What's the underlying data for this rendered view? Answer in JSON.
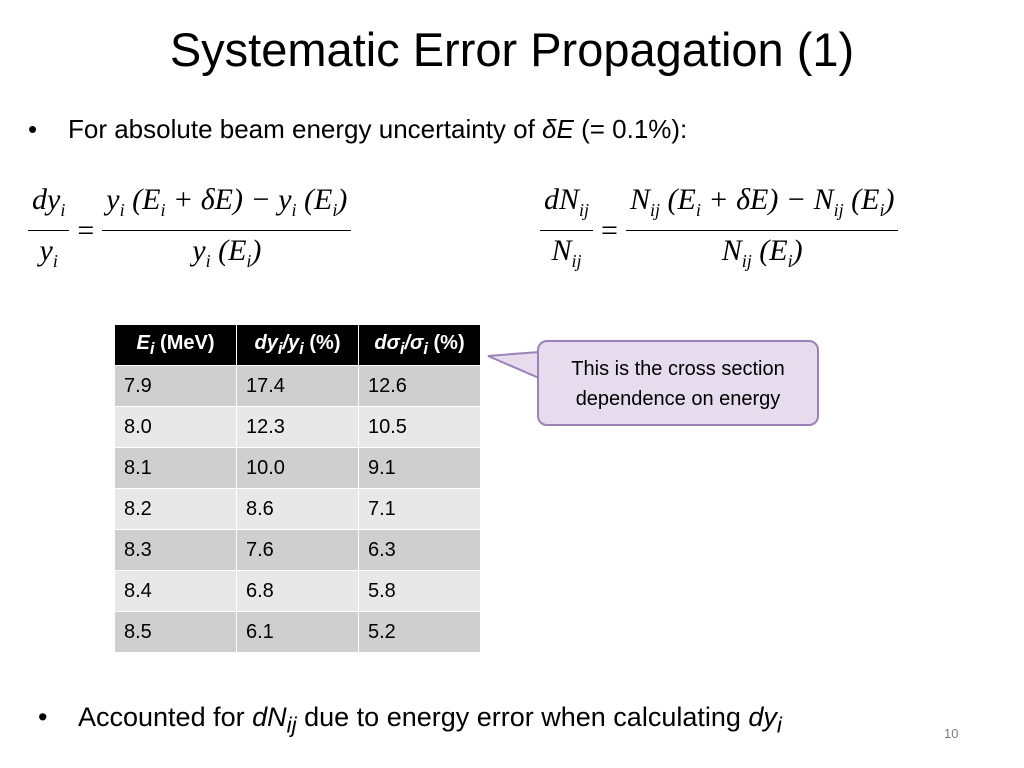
{
  "slide": {
    "title": "Systematic Error Propagation (1)",
    "bullet1": {
      "marker": "•",
      "text_before": "For absolute beam energy uncertainty of ",
      "delta_e": "δE",
      "text_after": " (= 0.1%):"
    },
    "equation1": {
      "lhs_num": "dy",
      "lhs_num_sub": "i",
      "lhs_den": "y",
      "lhs_den_sub": "i",
      "equals": "=",
      "rhs_num_a": "y",
      "rhs_num_a_sub": "i",
      "rhs_num_b": " (E",
      "rhs_num_b_sub": "i",
      "rhs_num_c": " + δE) − y",
      "rhs_num_c_sub": "i",
      "rhs_num_d": " (E",
      "rhs_num_d_sub": "i",
      "rhs_num_e": ")",
      "rhs_den_a": "y",
      "rhs_den_a_sub": "i",
      "rhs_den_b": " (E",
      "rhs_den_b_sub": "i",
      "rhs_den_c": ")"
    },
    "equation2": {
      "lhs_num": "dN",
      "lhs_num_sub": "ij",
      "lhs_den": "N",
      "lhs_den_sub": "ij",
      "equals": "=",
      "rhs_num_a": "N",
      "rhs_num_a_sub": "ij",
      "rhs_num_b": " (E",
      "rhs_num_b_sub": "i",
      "rhs_num_c": " + δE) − N",
      "rhs_num_c_sub": "ij",
      "rhs_num_d": " (E",
      "rhs_num_d_sub": "i",
      "rhs_num_e": ")",
      "rhs_den_a": "N",
      "rhs_den_a_sub": "ij",
      "rhs_den_b": " (E",
      "rhs_den_b_sub": "i",
      "rhs_den_c": ")"
    },
    "table": {
      "headers": [
        {
          "a": "E",
          "a_sub": "i",
          "rest": " (MeV)"
        },
        {
          "a": "dy",
          "a_sub": "i",
          "b": "/y",
          "b_sub": "i",
          "rest": " (%)"
        },
        {
          "a": "dσ",
          "a_sub": "i",
          "b": "/σ",
          "b_sub": "i",
          "rest": " (%)"
        }
      ],
      "rows": [
        [
          "7.9",
          "17.4",
          "12.6"
        ],
        [
          "8.0",
          "12.3",
          "10.5"
        ],
        [
          "8.1",
          "10.0",
          "9.1"
        ],
        [
          "8.2",
          "8.6",
          "7.1"
        ],
        [
          "8.3",
          "7.6",
          "6.3"
        ],
        [
          "8.4",
          "6.8",
          "5.8"
        ],
        [
          "8.5",
          "6.1",
          "5.2"
        ]
      ]
    },
    "callout": {
      "line1": "This is the cross section",
      "line2": "dependence on energy"
    },
    "bullet2": {
      "marker": "•",
      "text1": "Accounted for ",
      "dN": "dN",
      "dN_sub": "ij",
      "text2": " due to energy error when calculating ",
      "dy": "dy",
      "dy_sub": "i"
    },
    "page_number": "10"
  },
  "colors": {
    "header_bg": "#000000",
    "row_dark": "#cfcfcf",
    "row_light": "#e8e8e8",
    "callout_fill": "#e6dcee",
    "callout_border": "#9d82b8"
  }
}
